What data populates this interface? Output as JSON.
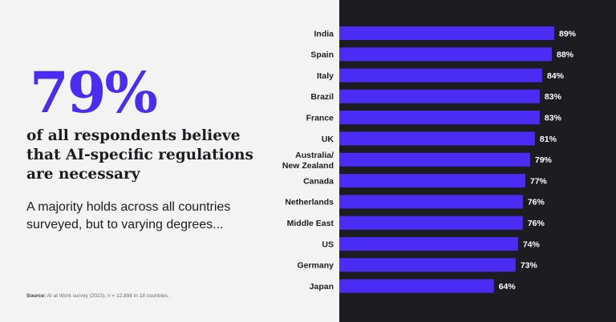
{
  "colors": {
    "accent": "#4a2cf5",
    "left_bg": "#f3f3f4",
    "right_bg": "#1d1c20",
    "text_dark": "#1d1c20",
    "text_light": "#ffffff"
  },
  "headline": {
    "big_stat": "79%",
    "statement": "of all respondents believe that AI-specific regulations are necessary",
    "subtext": "A majority holds across all countries surveyed, but to varying degrees..."
  },
  "source": {
    "label": "Source:",
    "text": "AI at Work survey (2023), n = 12,898 in 18 countries."
  },
  "chart_data": {
    "type": "bar",
    "orientation": "horizontal",
    "categories": [
      "India",
      "Spain",
      "Italy",
      "Brazil",
      "France",
      "UK",
      "Australia/ New Zealand",
      "Canada",
      "Netherlands",
      "Middle East",
      "US",
      "Germany",
      "Japan"
    ],
    "category_lines": [
      [
        "India"
      ],
      [
        "Spain"
      ],
      [
        "Italy"
      ],
      [
        "Brazil"
      ],
      [
        "France"
      ],
      [
        "UK"
      ],
      [
        "Australia/",
        "New Zealand"
      ],
      [
        "Canada"
      ],
      [
        "Netherlands"
      ],
      [
        "Middle East"
      ],
      [
        "US"
      ],
      [
        "Germany"
      ],
      [
        "Japan"
      ]
    ],
    "values": [
      89,
      88,
      84,
      83,
      83,
      81,
      79,
      77,
      76,
      76,
      74,
      73,
      64
    ],
    "value_labels": [
      "89%",
      "88%",
      "84%",
      "83%",
      "83%",
      "81%",
      "79%",
      "77%",
      "76%",
      "76%",
      "74%",
      "73%",
      "64%"
    ],
    "value_unit": "%",
    "xlim": [
      0,
      100
    ],
    "title": "",
    "xlabel": "",
    "ylabel": "",
    "grid": false,
    "legend": "none"
  }
}
